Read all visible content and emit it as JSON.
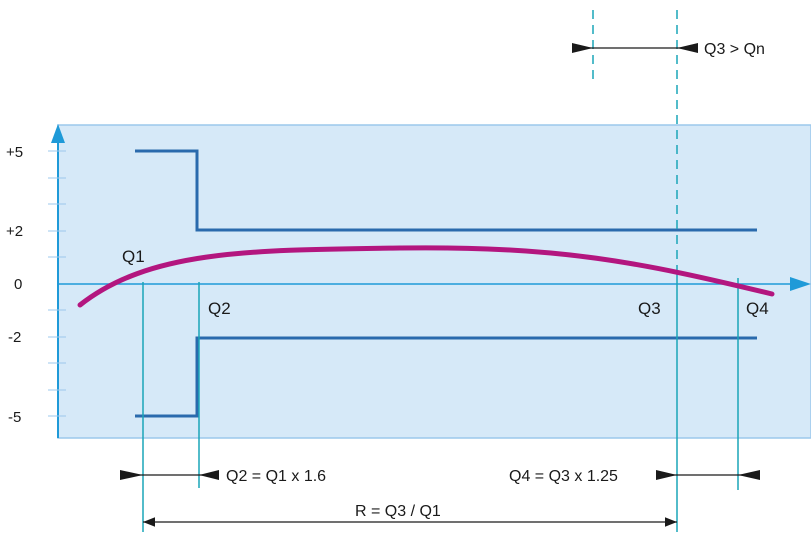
{
  "colors": {
    "panel_fill": "#d6e9f8",
    "panel_border": "#9cc8ec",
    "limit_line": "#2a6aad",
    "curve": "#b3167f",
    "marker_line": "#1aa5b8",
    "axis_arrow": "#1f9ad8",
    "dimension_line": "#1a1a1a"
  },
  "y_axis": {
    "ticks": [
      "+5",
      "+2",
      "0",
      "-2",
      "-5"
    ]
  },
  "flow_labels": {
    "q1": "Q1",
    "q2": "Q2",
    "q3": "Q3",
    "q4": "Q4"
  },
  "annotations": {
    "q3_vs_qn": "Q3 > Qn",
    "q2_formula": "Q2 = Q1 x 1.6",
    "q4_formula": "Q4 = Q3 x 1.25",
    "range_formula": "R = Q3 / Q1"
  }
}
